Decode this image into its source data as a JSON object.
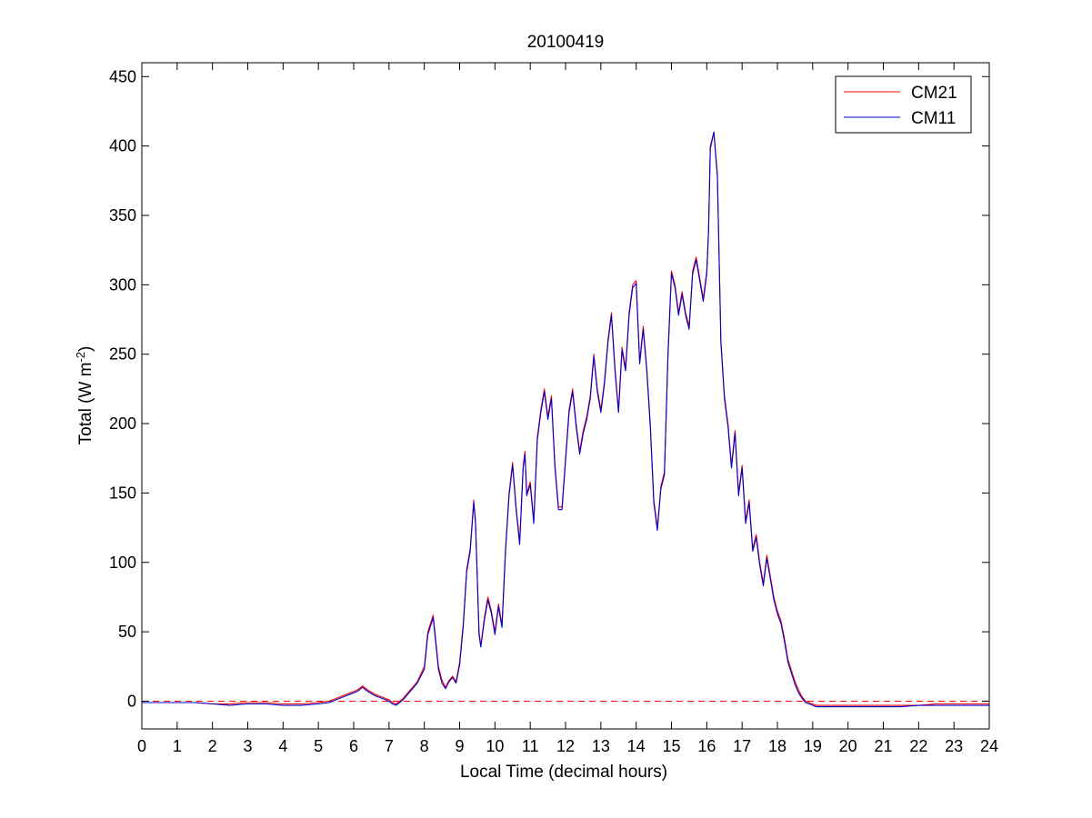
{
  "chart_data": {
    "type": "line",
    "title": "20100419",
    "xlabel": "Local Time (decimal hours)",
    "ylabel": {
      "prefix": "Total (W m",
      "superscript": "-2",
      "suffix": ")"
    },
    "xlim": [
      0,
      24
    ],
    "ylim": [
      -20,
      460
    ],
    "xticks": [
      0,
      1,
      2,
      3,
      4,
      5,
      6,
      7,
      8,
      9,
      10,
      11,
      12,
      13,
      14,
      15,
      16,
      17,
      18,
      19,
      20,
      21,
      22,
      23,
      24
    ],
    "yticks": [
      0,
      50,
      100,
      150,
      200,
      250,
      300,
      350,
      400,
      450
    ],
    "grid": false,
    "legend_position": "top-right",
    "reference_line": {
      "y": 0,
      "style": "dashed",
      "color": "#ff0000"
    },
    "series": [
      {
        "name": "CM21",
        "color": "#ff0000",
        "x": [
          0,
          0.5,
          1,
          1.5,
          2,
          2.5,
          3,
          3.5,
          4,
          4.5,
          5,
          5.3,
          5.6,
          5.9,
          6.1,
          6.25,
          6.4,
          6.6,
          6.8,
          7.0,
          7.1,
          7.2,
          7.4,
          7.6,
          7.8,
          8.0,
          8.1,
          8.2,
          8.25,
          8.3,
          8.4,
          8.5,
          8.6,
          8.7,
          8.8,
          8.9,
          9.0,
          9.1,
          9.2,
          9.3,
          9.4,
          9.45,
          9.5,
          9.55,
          9.6,
          9.7,
          9.8,
          9.9,
          10.0,
          10.1,
          10.2,
          10.3,
          10.4,
          10.5,
          10.6,
          10.7,
          10.8,
          10.85,
          10.9,
          11.0,
          11.1,
          11.2,
          11.3,
          11.4,
          11.5,
          11.6,
          11.7,
          11.8,
          11.9,
          12.0,
          12.1,
          12.2,
          12.3,
          12.4,
          12.5,
          12.6,
          12.7,
          12.8,
          12.9,
          13.0,
          13.1,
          13.2,
          13.3,
          13.4,
          13.5,
          13.6,
          13.7,
          13.8,
          13.9,
          14.0,
          14.1,
          14.2,
          14.3,
          14.4,
          14.5,
          14.6,
          14.7,
          14.8,
          14.9,
          15.0,
          15.1,
          15.2,
          15.3,
          15.4,
          15.5,
          15.6,
          15.7,
          15.8,
          15.9,
          16.0,
          16.05,
          16.1,
          16.2,
          16.3,
          16.4,
          16.5,
          16.6,
          16.7,
          16.8,
          16.9,
          17.0,
          17.1,
          17.2,
          17.3,
          17.4,
          17.5,
          17.6,
          17.7,
          17.8,
          17.9,
          18.0,
          18.1,
          18.2,
          18.3,
          18.4,
          18.5,
          18.6,
          18.7,
          18.8,
          18.9,
          19.0,
          19.1,
          19.3,
          19.5,
          20,
          20.5,
          21,
          21.5,
          22,
          22.5,
          23,
          23.5,
          24
        ],
        "y": [
          -1,
          -1,
          -1,
          -1,
          -2,
          -2,
          -1,
          -1,
          -2,
          -2,
          -1,
          0,
          3,
          6,
          8,
          11,
          8,
          5,
          3,
          1,
          -1,
          -2,
          2,
          8,
          14,
          25,
          50,
          58,
          62,
          50,
          25,
          15,
          10,
          15,
          18,
          14,
          28,
          55,
          95,
          110,
          145,
          130,
          90,
          50,
          40,
          60,
          75,
          65,
          50,
          70,
          55,
          110,
          150,
          172,
          140,
          115,
          170,
          180,
          150,
          158,
          130,
          190,
          210,
          225,
          205,
          220,
          170,
          140,
          140,
          175,
          210,
          225,
          200,
          180,
          195,
          205,
          220,
          250,
          225,
          210,
          230,
          260,
          280,
          240,
          210,
          255,
          240,
          280,
          300,
          303,
          245,
          270,
          240,
          200,
          145,
          125,
          155,
          165,
          250,
          310,
          300,
          280,
          295,
          280,
          270,
          310,
          320,
          305,
          290,
          310,
          340,
          400,
          410,
          380,
          260,
          220,
          200,
          170,
          195,
          150,
          170,
          130,
          145,
          110,
          120,
          100,
          85,
          105,
          90,
          75,
          65,
          58,
          45,
          30,
          22,
          14,
          8,
          3,
          0,
          -1,
          -2,
          -3,
          -3,
          -3,
          -3,
          -3,
          -3,
          -3,
          -3,
          -2,
          -2,
          -2,
          -2
        ]
      },
      {
        "name": "CM11",
        "color": "#0000cc",
        "x": [
          0,
          0.5,
          1,
          1.5,
          2,
          2.5,
          3,
          3.5,
          4,
          4.5,
          5,
          5.3,
          5.6,
          5.9,
          6.1,
          6.25,
          6.4,
          6.6,
          6.8,
          7.0,
          7.1,
          7.2,
          7.4,
          7.6,
          7.8,
          8.0,
          8.1,
          8.2,
          8.25,
          8.3,
          8.4,
          8.5,
          8.6,
          8.7,
          8.8,
          8.9,
          9.0,
          9.1,
          9.2,
          9.3,
          9.4,
          9.45,
          9.5,
          9.55,
          9.6,
          9.7,
          9.8,
          9.9,
          10.0,
          10.1,
          10.2,
          10.3,
          10.4,
          10.5,
          10.6,
          10.7,
          10.8,
          10.85,
          10.9,
          11.0,
          11.1,
          11.2,
          11.3,
          11.4,
          11.5,
          11.6,
          11.7,
          11.8,
          11.9,
          12.0,
          12.1,
          12.2,
          12.3,
          12.4,
          12.5,
          12.6,
          12.7,
          12.8,
          12.9,
          13.0,
          13.1,
          13.2,
          13.3,
          13.4,
          13.5,
          13.6,
          13.7,
          13.8,
          13.9,
          14.0,
          14.1,
          14.2,
          14.3,
          14.4,
          14.5,
          14.6,
          14.7,
          14.8,
          14.9,
          15.0,
          15.1,
          15.2,
          15.3,
          15.4,
          15.5,
          15.6,
          15.7,
          15.8,
          15.9,
          16.0,
          16.05,
          16.1,
          16.2,
          16.3,
          16.4,
          16.5,
          16.6,
          16.7,
          16.8,
          16.9,
          17.0,
          17.1,
          17.2,
          17.3,
          17.4,
          17.5,
          17.6,
          17.7,
          17.8,
          17.9,
          18.0,
          18.1,
          18.2,
          18.3,
          18.4,
          18.5,
          18.6,
          18.7,
          18.8,
          18.9,
          19.0,
          19.1,
          19.3,
          19.5,
          20,
          20.5,
          21,
          21.5,
          22,
          22.5,
          23,
          23.5,
          24
        ],
        "y": [
          -1,
          -1,
          -1,
          -1,
          -2,
          -3,
          -2,
          -2,
          -3,
          -3,
          -2,
          -1,
          2,
          5,
          7,
          10,
          7,
          4,
          2,
          0,
          -2,
          -3,
          1,
          7,
          13,
          23,
          48,
          56,
          60,
          48,
          23,
          13,
          9,
          14,
          17,
          13,
          26,
          53,
          93,
          108,
          143,
          128,
          88,
          48,
          39,
          58,
          73,
          63,
          48,
          68,
          53,
          108,
          148,
          170,
          138,
          113,
          168,
          178,
          148,
          156,
          128,
          188,
          208,
          223,
          203,
          218,
          168,
          138,
          138,
          173,
          208,
          223,
          198,
          178,
          193,
          203,
          218,
          248,
          223,
          208,
          228,
          258,
          278,
          238,
          208,
          253,
          238,
          278,
          298,
          301,
          243,
          268,
          238,
          198,
          143,
          123,
          153,
          163,
          248,
          308,
          298,
          278,
          293,
          278,
          268,
          308,
          318,
          303,
          288,
          308,
          338,
          398,
          410,
          378,
          258,
          218,
          198,
          168,
          193,
          148,
          168,
          128,
          143,
          108,
          118,
          98,
          83,
          103,
          88,
          73,
          63,
          56,
          43,
          28,
          20,
          12,
          6,
          2,
          -1,
          -2,
          -3,
          -4,
          -4,
          -4,
          -4,
          -4,
          -4,
          -4,
          -3,
          -3,
          -3,
          -3,
          -3
        ]
      }
    ]
  }
}
